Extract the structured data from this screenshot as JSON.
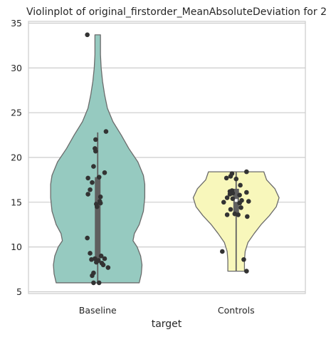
{
  "chart_data": {
    "type": "violin",
    "title": "Violinplot of original_firstorder_MeanAbsoluteDeviation for 2",
    "xlabel": "target",
    "ylabel": "",
    "categories": [
      "Baseline",
      "Controls"
    ],
    "ylim": [
      4.8,
      35.2
    ],
    "yticks": [
      5,
      10,
      15,
      20,
      25,
      30,
      35
    ],
    "grid": "horizontal",
    "colors": {
      "Baseline": "#96cac0",
      "Controls": "#f8f7bb",
      "outline": "#6b6b6b",
      "grid": "#cccccc",
      "points": "#333333",
      "box": "#5f5f5f"
    },
    "violins": [
      {
        "category": "Baseline",
        "range": [
          6.0,
          33.7
        ],
        "quartiles": [
          8.2,
          14.9,
          17.8
        ],
        "whiskers": [
          6.0,
          22.8
        ],
        "density_profile": [
          [
            6.0,
            0.6
          ],
          [
            7.0,
            0.63
          ],
          [
            8.0,
            0.64
          ],
          [
            9.0,
            0.62
          ],
          [
            10.0,
            0.57
          ],
          [
            10.7,
            0.51
          ],
          [
            11.5,
            0.53
          ],
          [
            12.5,
            0.6
          ],
          [
            14.0,
            0.66
          ],
          [
            15.5,
            0.68
          ],
          [
            17.0,
            0.68
          ],
          [
            18.0,
            0.66
          ],
          [
            19.5,
            0.58
          ],
          [
            21.0,
            0.45
          ],
          [
            22.5,
            0.34
          ],
          [
            24.0,
            0.22
          ],
          [
            25.5,
            0.14
          ],
          [
            27.0,
            0.1
          ],
          [
            28.5,
            0.07
          ],
          [
            30.0,
            0.05
          ],
          [
            31.5,
            0.04
          ],
          [
            33.7,
            0.04
          ]
        ],
        "points": [
          [
            -0.15,
            33.7
          ],
          [
            0.12,
            22.9
          ],
          [
            -0.03,
            22.0
          ],
          [
            -0.04,
            21.0
          ],
          [
            -0.03,
            20.7
          ],
          [
            -0.06,
            19.0
          ],
          [
            0.1,
            18.3
          ],
          [
            -0.14,
            17.7
          ],
          [
            0.02,
            17.8
          ],
          [
            -0.08,
            17.2
          ],
          [
            -0.11,
            16.4
          ],
          [
            -0.14,
            15.9
          ],
          [
            0.04,
            15.6
          ],
          [
            0.03,
            15.1
          ],
          [
            0.04,
            14.9
          ],
          [
            -0.02,
            14.8
          ],
          [
            -0.01,
            14.5
          ],
          [
            -0.15,
            11.0
          ],
          [
            -0.11,
            9.3
          ],
          [
            0.05,
            9.0
          ],
          [
            -0.04,
            8.7
          ],
          [
            -0.09,
            8.6
          ],
          [
            0.1,
            8.7
          ],
          [
            0.01,
            8.5
          ],
          [
            -0.02,
            8.3
          ],
          [
            0.06,
            8.2
          ],
          [
            0.08,
            8.0
          ],
          [
            0.15,
            7.7
          ],
          [
            -0.06,
            7.1
          ],
          [
            -0.08,
            6.8
          ],
          [
            -0.06,
            6.0
          ],
          [
            0.02,
            6.0
          ]
        ]
      },
      {
        "category": "Controls",
        "range": [
          7.3,
          18.4
        ],
        "quartiles": [
          13.8,
          15.2,
          16.5
        ],
        "whiskers": [
          7.3,
          18.4
        ],
        "density_profile": [
          [
            7.3,
            0.12
          ],
          [
            8.5,
            0.12
          ],
          [
            9.5,
            0.13
          ],
          [
            10.5,
            0.17
          ],
          [
            11.5,
            0.26
          ],
          [
            12.5,
            0.36
          ],
          [
            13.5,
            0.48
          ],
          [
            14.5,
            0.58
          ],
          [
            15.5,
            0.62
          ],
          [
            16.5,
            0.56
          ],
          [
            17.5,
            0.44
          ],
          [
            18.4,
            0.4
          ]
        ],
        "points": [
          [
            0.15,
            18.4
          ],
          [
            -0.06,
            18.2
          ],
          [
            -0.08,
            17.9
          ],
          [
            -0.14,
            17.7
          ],
          [
            0.0,
            17.6
          ],
          [
            0.06,
            16.9
          ],
          [
            -0.06,
            16.3
          ],
          [
            -0.09,
            16.2
          ],
          [
            -0.05,
            16.0
          ],
          [
            -0.09,
            15.9
          ],
          [
            0.15,
            16.1
          ],
          [
            0.05,
            15.8
          ],
          [
            -0.13,
            15.5
          ],
          [
            -0.05,
            15.4
          ],
          [
            0.18,
            15.1
          ],
          [
            0.08,
            15.2
          ],
          [
            -0.18,
            15.0
          ],
          [
            0.05,
            14.9
          ],
          [
            0.07,
            14.4
          ],
          [
            -0.08,
            14.2
          ],
          [
            -0.02,
            13.7
          ],
          [
            0.03,
            13.6
          ],
          [
            -0.13,
            13.6
          ],
          [
            0.16,
            13.4
          ],
          [
            -0.2,
            9.5
          ],
          [
            0.11,
            8.6
          ],
          [
            0.15,
            7.3
          ]
        ]
      }
    ]
  }
}
